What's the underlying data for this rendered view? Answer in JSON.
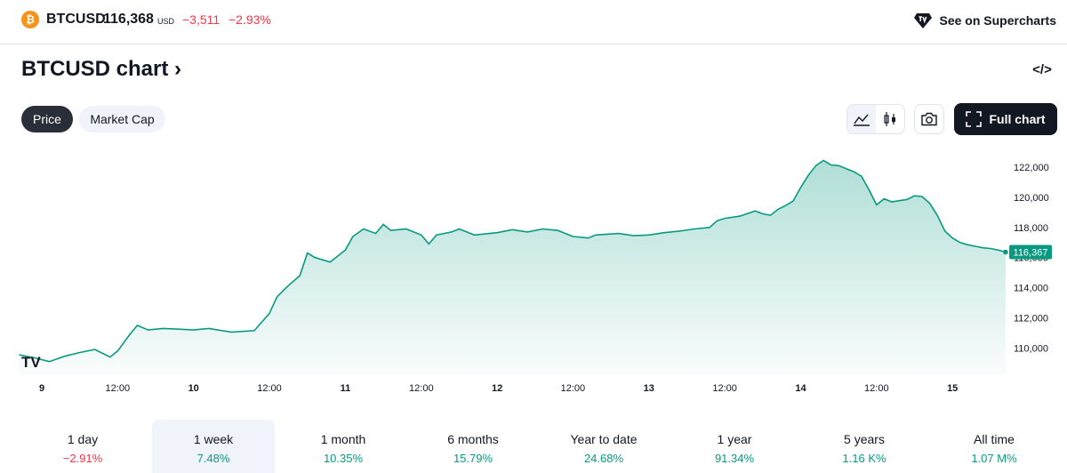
{
  "header": {
    "coin_icon_glyph": "₿",
    "symbol": "BTCUSD",
    "price": "116,368",
    "currency": "USD",
    "change_abs": "−3,511",
    "change_pct": "−2.93%",
    "supercharts_label": "See on Supercharts",
    "supercharts_icon": "tv-diamond-icon"
  },
  "heading": {
    "title": "BTCUSD chart",
    "chevron": "›",
    "embed_icon": "</>"
  },
  "tabs": [
    {
      "label": "Price",
      "active": true
    },
    {
      "label": "Market Cap",
      "active": false
    }
  ],
  "toolbar": {
    "area_icon": "area-chart-icon",
    "candle_icon": "candlestick-icon",
    "camera_icon": "camera-icon",
    "full_chart_label": "Full chart"
  },
  "chart_data": {
    "type": "area",
    "logo": "TV",
    "x_ticks": [
      "9",
      "12:00",
      "10",
      "12:00",
      "11",
      "12:00",
      "12",
      "12:00",
      "13",
      "12:00",
      "14",
      "12:00",
      "15"
    ],
    "y_ticks": [
      "122,000",
      "120,000",
      "118,000",
      "116,000",
      "114,000",
      "112,000",
      "110,000"
    ],
    "y_tick_values": [
      122000,
      120000,
      118000,
      116000,
      114000,
      112000,
      110000
    ],
    "ylim": [
      108800,
      124300
    ],
    "x_range_days": [
      -0.15,
      6.35
    ],
    "last_value_label": "116,367",
    "last_value": 116367,
    "line_color": "#089981",
    "series": [
      {
        "values": [
          [
            -0.15,
            109550
          ],
          [
            -0.05,
            109350
          ],
          [
            0.05,
            109100
          ],
          [
            0.15,
            109450
          ],
          [
            0.25,
            109700
          ],
          [
            0.35,
            109900
          ],
          [
            0.45,
            109400
          ],
          [
            0.5,
            109800
          ],
          [
            0.58,
            110900
          ],
          [
            0.63,
            111500
          ],
          [
            0.7,
            111200
          ],
          [
            0.8,
            111300
          ],
          [
            0.9,
            111250
          ],
          [
            1.0,
            111200
          ],
          [
            1.1,
            111300
          ],
          [
            1.25,
            111050
          ],
          [
            1.4,
            111150
          ],
          [
            1.5,
            112300
          ],
          [
            1.55,
            113400
          ],
          [
            1.62,
            114100
          ],
          [
            1.7,
            114800
          ],
          [
            1.75,
            116300
          ],
          [
            1.8,
            116000
          ],
          [
            1.9,
            115700
          ],
          [
            2.0,
            116500
          ],
          [
            2.05,
            117400
          ],
          [
            2.12,
            117900
          ],
          [
            2.2,
            117600
          ],
          [
            2.25,
            118200
          ],
          [
            2.3,
            117800
          ],
          [
            2.4,
            117900
          ],
          [
            2.5,
            117500
          ],
          [
            2.55,
            116900
          ],
          [
            2.6,
            117500
          ],
          [
            2.7,
            117700
          ],
          [
            2.75,
            117900
          ],
          [
            2.85,
            117500
          ],
          [
            3.0,
            117650
          ],
          [
            3.1,
            117850
          ],
          [
            3.2,
            117700
          ],
          [
            3.3,
            117900
          ],
          [
            3.4,
            117800
          ],
          [
            3.5,
            117400
          ],
          [
            3.6,
            117300
          ],
          [
            3.65,
            117500
          ],
          [
            3.8,
            117600
          ],
          [
            3.9,
            117450
          ],
          [
            4.0,
            117500
          ],
          [
            4.1,
            117650
          ],
          [
            4.2,
            117750
          ],
          [
            4.3,
            117900
          ],
          [
            4.4,
            118000
          ],
          [
            4.45,
            118450
          ],
          [
            4.5,
            118600
          ],
          [
            4.6,
            118750
          ],
          [
            4.7,
            119100
          ],
          [
            4.75,
            118900
          ],
          [
            4.8,
            118800
          ],
          [
            4.85,
            119200
          ],
          [
            4.9,
            119450
          ],
          [
            4.95,
            119750
          ],
          [
            5.0,
            120650
          ],
          [
            5.05,
            121450
          ],
          [
            5.1,
            122100
          ],
          [
            5.15,
            122450
          ],
          [
            5.2,
            122150
          ],
          [
            5.25,
            122100
          ],
          [
            5.3,
            121900
          ],
          [
            5.35,
            121700
          ],
          [
            5.4,
            121400
          ],
          [
            5.45,
            120500
          ],
          [
            5.5,
            119500
          ],
          [
            5.55,
            119900
          ],
          [
            5.6,
            119700
          ],
          [
            5.7,
            119850
          ],
          [
            5.75,
            120100
          ],
          [
            5.8,
            120050
          ],
          [
            5.85,
            119600
          ],
          [
            5.9,
            118800
          ],
          [
            5.95,
            117750
          ],
          [
            6.0,
            117300
          ],
          [
            6.05,
            117000
          ],
          [
            6.1,
            116850
          ],
          [
            6.15,
            116750
          ],
          [
            6.2,
            116650
          ],
          [
            6.25,
            116600
          ],
          [
            6.3,
            116500
          ],
          [
            6.35,
            116367
          ]
        ]
      }
    ]
  },
  "periods": [
    {
      "label": "1 day",
      "value": "−2.91%",
      "sign": "neg",
      "selected": false
    },
    {
      "label": "1 week",
      "value": "7.48%",
      "sign": "pos",
      "selected": true
    },
    {
      "label": "1 month",
      "value": "10.35%",
      "sign": "pos",
      "selected": false
    },
    {
      "label": "6 months",
      "value": "15.79%",
      "sign": "pos",
      "selected": false
    },
    {
      "label": "Year to date",
      "value": "24.68%",
      "sign": "pos",
      "selected": false
    },
    {
      "label": "1 year",
      "value": "91.34%",
      "sign": "pos",
      "selected": false
    },
    {
      "label": "5 years",
      "value": "1.16 K%",
      "sign": "pos",
      "selected": false
    },
    {
      "label": "All time",
      "value": "1.07 M%",
      "sign": "pos",
      "selected": false
    }
  ]
}
